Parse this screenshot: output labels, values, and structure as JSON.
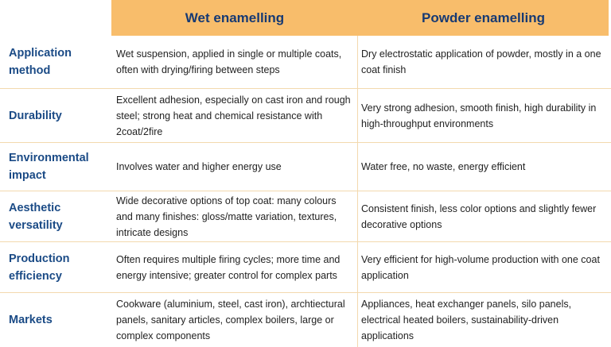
{
  "columns": {
    "wet": "Wet enamelling",
    "powder": "Powder enamelling"
  },
  "rows": [
    {
      "label": "Application method",
      "wet": "Wet suspension, applied in single or multiple coats, often with drying/firing between steps",
      "powder": "Dry electrostatic application of powder, mostly in a one coat finish"
    },
    {
      "label": "Durability",
      "wet": "Excellent adhesion, especially on cast iron and rough steel; strong heat and chemical resistance with 2coat/2fire",
      "powder": "Very strong adhesion, smooth finish, high durability in high-throughput environments"
    },
    {
      "label": "Environmental impact",
      "wet": "Involves water and higher energy use",
      "powder": "Water free, no waste, energy efficient"
    },
    {
      "label": "Aesthetic versatility",
      "wet": "Wide decorative options of top coat: many colours and many finishes: gloss/matte variation, textures, intricate designs",
      "powder": "Consistent finish, less color options and slightly fewer decorative options"
    },
    {
      "label": "Production efficiency",
      "wet": "Often requires multiple firing cycles; more time and energy intensive; greater control for complex parts",
      "powder": "Very efficient for high-volume production with one coat application"
    },
    {
      "label": "Markets",
      "wet": "Cookware (aluminium, steel, cast iron), archtiectural panels, sanitary articles, complex boilers, large or complex components",
      "powder": "Appliances, heat exchanger panels, silo panels, electrical heated boilers, sustainability-driven applications"
    }
  ],
  "colors": {
    "header_bg": "#f8bd6b",
    "header_text": "#173a73",
    "row_label_text": "#1b4b86",
    "divider": "#f3d9ae"
  }
}
